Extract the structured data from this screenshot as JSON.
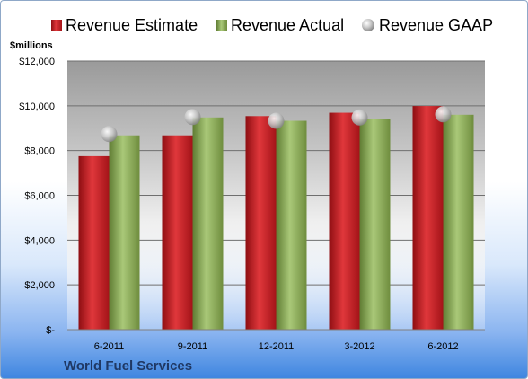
{
  "chart_data": {
    "type": "bar",
    "units_label": "$millions",
    "company": "World Fuel Services",
    "categories": [
      "6-2011",
      "9-2011",
      "12-2011",
      "3-2012",
      "6-2012"
    ],
    "y_tick_labels": [
      "$-",
      "$2,000",
      "$4,000",
      "$6,000",
      "$8,000",
      "$10,000",
      "$12,000"
    ],
    "ylim": [
      0,
      12000
    ],
    "grid": true,
    "legend_position": "top",
    "series": [
      {
        "name": "Revenue Estimate",
        "kind": "bar",
        "color": "#c0171d",
        "values": [
          7750,
          8680,
          9540,
          9690,
          9990
        ]
      },
      {
        "name": "Revenue Actual",
        "kind": "bar",
        "color": "#8aac52",
        "values": [
          8680,
          9480,
          9330,
          9430,
          9600
        ]
      },
      {
        "name": "Revenue GAAP",
        "kind": "marker",
        "color": "#bfbfbf",
        "values": [
          8740,
          9500,
          9330,
          9480,
          9620
        ]
      }
    ]
  }
}
